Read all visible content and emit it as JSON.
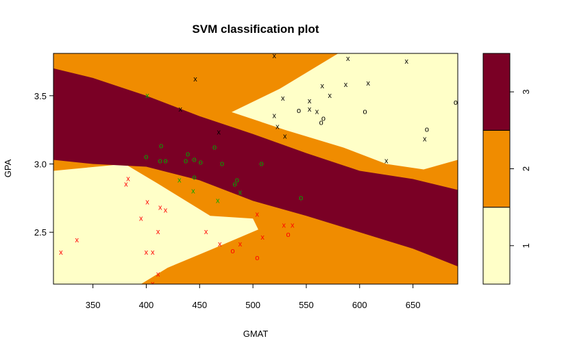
{
  "chart_data": {
    "type": "scatter",
    "title": "SVM classification plot",
    "xlabel": "GMAT",
    "ylabel": "GPA",
    "xlim": [
      313,
      692
    ],
    "ylim": [
      2.12,
      3.81
    ],
    "x_ticks": [
      350,
      400,
      450,
      500,
      550,
      600,
      650
    ],
    "x_tick_labels": [
      "350",
      "400",
      "450",
      "500",
      "550",
      "600",
      "650"
    ],
    "y_ticks": [
      2.5,
      3.0,
      3.5
    ],
    "y_tick_labels": [
      "2.5",
      "3.0",
      "3.5"
    ],
    "legend": {
      "placement": "right",
      "classes": [
        "1",
        "2",
        "3"
      ],
      "colors": [
        "#FFFFC8",
        "#F08C00",
        "#7A0025"
      ]
    },
    "region_colors": {
      "1": "#FFFFC8",
      "2": "#F08C00",
      "3": "#7A0025"
    },
    "regions": [
      {
        "class": "2",
        "polygon": [
          [
            313,
            3.81
          ],
          [
            692,
            3.81
          ],
          [
            692,
            2.12
          ],
          [
            313,
            2.12
          ]
        ]
      },
      {
        "class": "1",
        "polygon": [
          [
            313,
            2.95
          ],
          [
            380,
            3.0
          ],
          [
            410,
            2.86
          ],
          [
            460,
            2.62
          ],
          [
            500,
            2.6
          ],
          [
            505,
            2.52
          ],
          [
            460,
            2.37
          ],
          [
            420,
            2.24
          ],
          [
            395,
            2.12
          ],
          [
            313,
            2.12
          ]
        ]
      },
      {
        "class": "1",
        "polygon": [
          [
            395,
            2.12
          ],
          [
            670,
            2.12
          ],
          [
            435,
            2.12
          ]
        ]
      },
      {
        "class": "1",
        "polygon": [
          [
            480,
            3.38
          ],
          [
            525,
            3.55
          ],
          [
            580,
            3.81
          ],
          [
            692,
            3.81
          ],
          [
            692,
            3.03
          ],
          [
            660,
            2.96
          ],
          [
            625,
            3.0
          ],
          [
            585,
            3.12
          ],
          [
            530,
            3.25
          ]
        ]
      },
      {
        "class": "3",
        "polygon": [
          [
            313,
            3.7
          ],
          [
            350,
            3.63
          ],
          [
            400,
            3.5
          ],
          [
            450,
            3.35
          ],
          [
            500,
            3.22
          ],
          [
            550,
            3.08
          ],
          [
            600,
            2.95
          ],
          [
            650,
            2.89
          ],
          [
            692,
            2.81
          ],
          [
            692,
            2.25
          ],
          [
            650,
            2.38
          ],
          [
            600,
            2.5
          ],
          [
            550,
            2.62
          ],
          [
            500,
            2.73
          ],
          [
            450,
            2.88
          ],
          [
            400,
            2.98
          ],
          [
            350,
            3.0
          ],
          [
            313,
            3.03
          ]
        ]
      }
    ],
    "series": [
      {
        "name": "1",
        "color": "#000000",
        "symbol": "x",
        "points": [
          [
            520,
            3.79
          ],
          [
            589,
            3.77
          ],
          [
            644,
            3.75
          ],
          [
            446,
            3.62
          ],
          [
            572,
            3.5
          ],
          [
            587,
            3.58
          ],
          [
            565,
            3.57
          ],
          [
            608,
            3.59
          ],
          [
            528,
            3.48
          ],
          [
            553,
            3.46
          ],
          [
            432,
            3.4
          ],
          [
            553,
            3.4
          ],
          [
            520,
            3.35
          ],
          [
            523,
            3.27
          ],
          [
            530,
            3.2
          ],
          [
            661,
            3.18
          ],
          [
            468,
            3.23
          ],
          [
            625,
            3.02
          ],
          [
            560,
            3.38
          ]
        ]
      },
      {
        "name": "1",
        "color": "#000000",
        "symbol": "o",
        "points": [
          [
            605,
            3.38
          ],
          [
            566,
            3.33
          ],
          [
            564,
            3.3
          ],
          [
            663,
            3.25
          ],
          [
            690,
            3.45
          ],
          [
            543,
            3.39
          ]
        ]
      },
      {
        "name": "2",
        "color": "#00AA00",
        "symbol": "o",
        "points": [
          [
            414,
            3.13
          ],
          [
            439,
            3.07
          ],
          [
            464,
            3.12
          ],
          [
            400,
            3.05
          ],
          [
            413,
            3.02
          ],
          [
            418,
            3.02
          ],
          [
            437,
            3.02
          ],
          [
            445,
            3.03
          ],
          [
            451,
            3.01
          ],
          [
            471,
            3.0
          ],
          [
            508,
            3.0
          ],
          [
            445,
            2.9
          ],
          [
            485,
            2.88
          ],
          [
            483,
            2.85
          ],
          [
            545,
            2.75
          ]
        ]
      },
      {
        "name": "2",
        "color": "#00AA00",
        "symbol": "x",
        "points": [
          [
            401,
            3.5
          ],
          [
            431,
            2.88
          ],
          [
            444,
            2.8
          ],
          [
            467,
            2.73
          ],
          [
            488,
            2.79
          ]
        ]
      },
      {
        "name": "3",
        "color": "#FF0000",
        "symbol": "x",
        "points": [
          [
            383,
            2.89
          ],
          [
            381,
            2.85
          ],
          [
            401,
            2.72
          ],
          [
            413,
            2.68
          ],
          [
            418,
            2.66
          ],
          [
            395,
            2.6
          ],
          [
            504,
            2.63
          ],
          [
            529,
            2.55
          ],
          [
            537,
            2.55
          ],
          [
            411,
            2.5
          ],
          [
            456,
            2.5
          ],
          [
            509,
            2.46
          ],
          [
            335,
            2.44
          ],
          [
            469,
            2.41
          ],
          [
            488,
            2.41
          ],
          [
            320,
            2.35
          ],
          [
            400,
            2.35
          ],
          [
            406,
            2.35
          ],
          [
            411,
            2.19
          ],
          [
            406,
            2.12
          ]
        ]
      },
      {
        "name": "3",
        "color": "#FF0000",
        "symbol": "o",
        "points": [
          [
            533,
            2.48
          ],
          [
            481,
            2.36
          ],
          [
            504,
            2.31
          ]
        ]
      }
    ]
  }
}
